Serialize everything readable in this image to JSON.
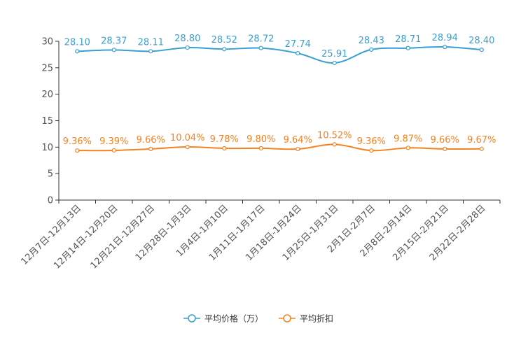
{
  "chart_data": {
    "type": "line",
    "categories": [
      "12月7日-12月13日",
      "12月14日-12月20日",
      "12月21日-12月27日",
      "12月28日-1月3日",
      "1月4日-1月10日",
      "1月11日-1月17日",
      "1月18日-1月24日",
      "1月25日-1月31日",
      "2月1日-2月7日",
      "2月8日-2月14日",
      "2月15日-2月21日",
      "2月22日-2月28日"
    ],
    "ylim": [
      0,
      30
    ],
    "yticks": [
      0,
      5,
      10,
      15,
      20,
      25,
      30
    ],
    "series": [
      {
        "name": "平均价格（万）",
        "color": "#3a9fd1",
        "values": [
          28.1,
          28.37,
          28.11,
          28.8,
          28.52,
          28.72,
          27.74,
          25.91,
          28.43,
          28.71,
          28.94,
          28.4
        ],
        "labels": [
          "28.10",
          "28.37",
          "28.11",
          "28.80",
          "28.52",
          "28.72",
          "27.74",
          "25.91",
          "28.43",
          "28.71",
          "28.94",
          "28.40"
        ]
      },
      {
        "name": "平均折扣",
        "color": "#f58220",
        "values": [
          9.36,
          9.39,
          9.66,
          10.04,
          9.78,
          9.8,
          9.64,
          10.52,
          9.36,
          9.87,
          9.66,
          9.67
        ],
        "labels": [
          "9.36%",
          "9.39%",
          "9.66%",
          "10.04%",
          "9.78%",
          "9.80%",
          "9.64%",
          "10.52%",
          "9.36%",
          "9.87%",
          "9.66%",
          "9.67%"
        ]
      }
    ],
    "xlabel": "",
    "ylabel": "",
    "grid": false,
    "legend": "bottom-center"
  }
}
